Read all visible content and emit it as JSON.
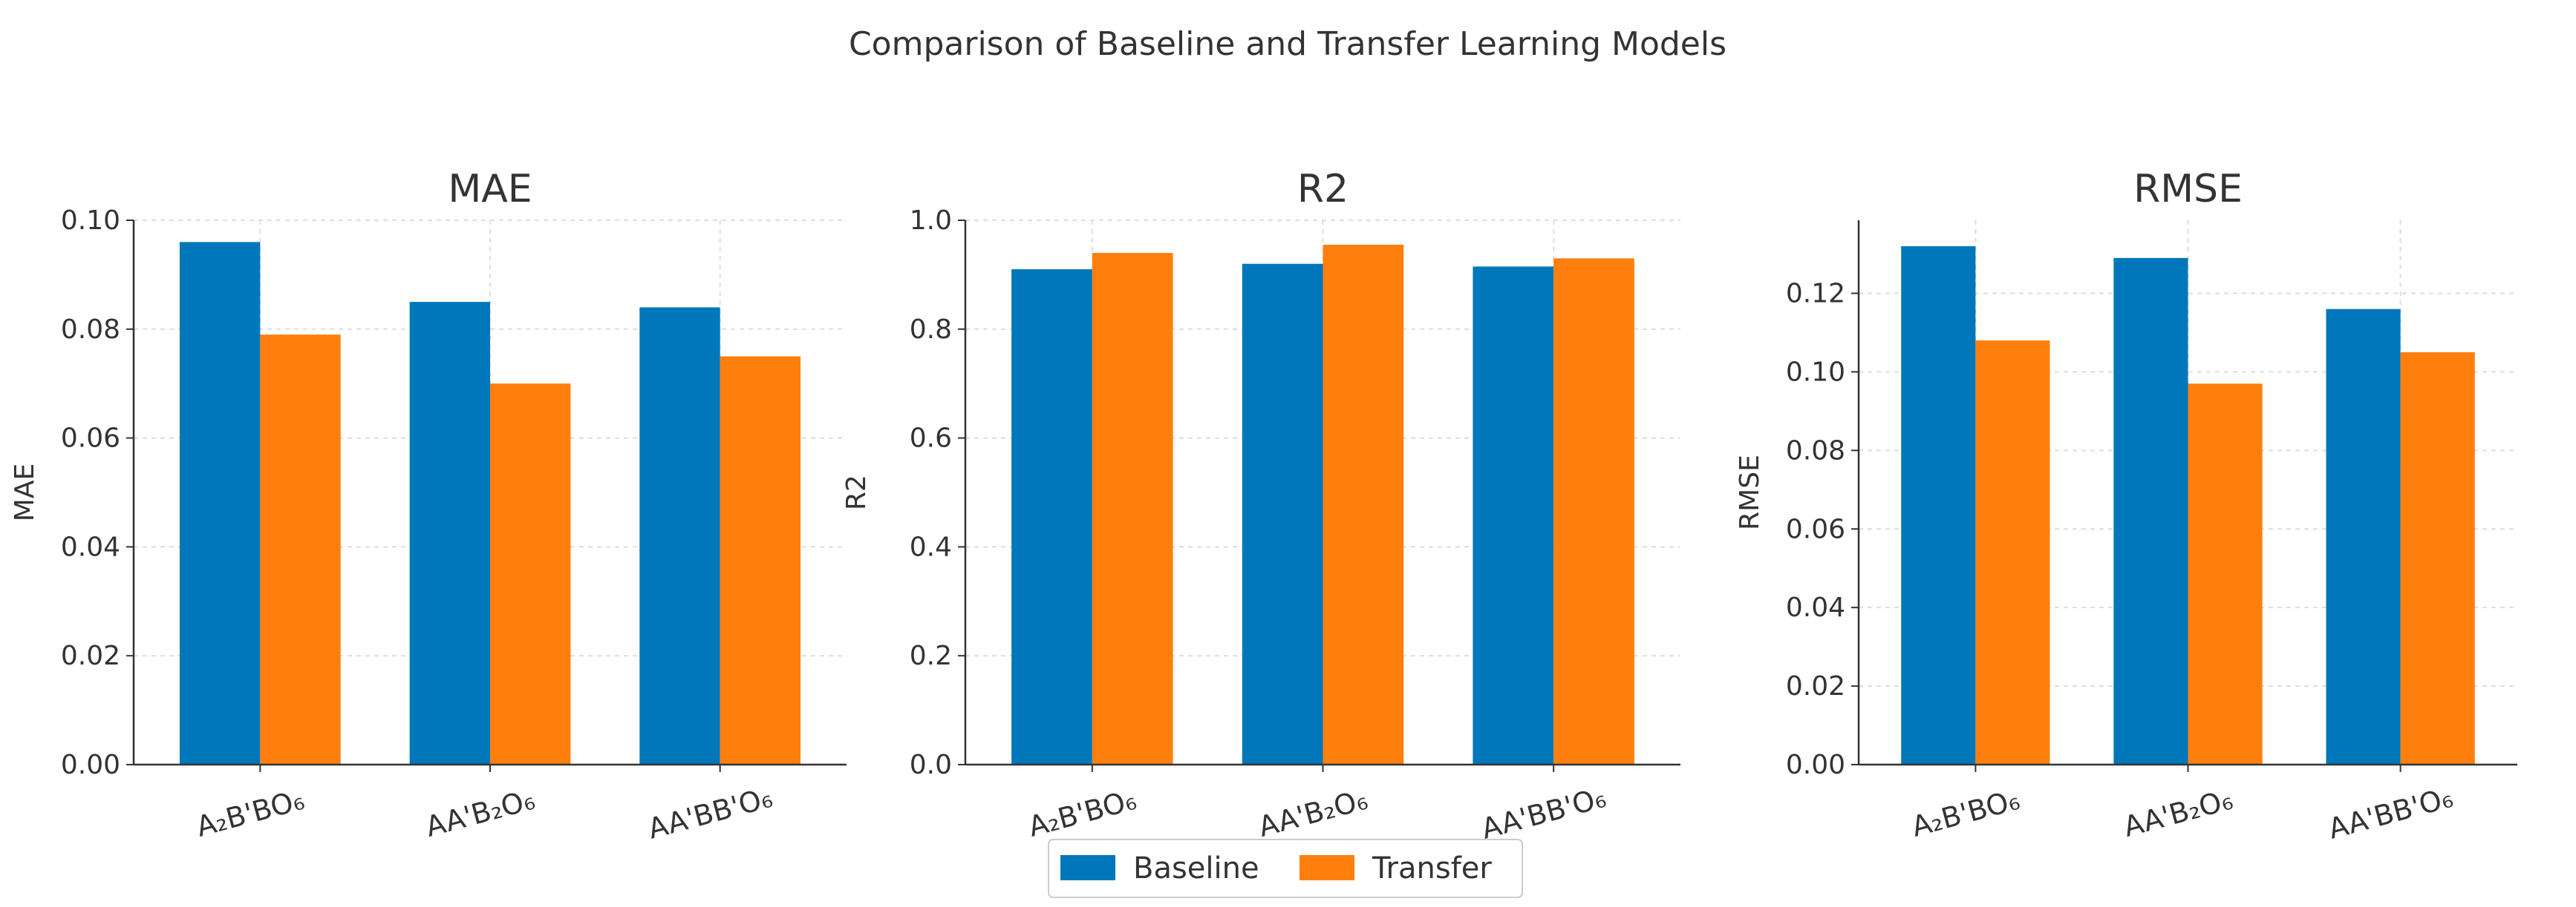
{
  "suptitle": "Comparison of Baseline and Transfer Learning Models",
  "colors": {
    "Baseline": "#0077bb",
    "Transfer": "#ff7f0e",
    "grid": "#dddddd",
    "axis": "#333333"
  },
  "legend": {
    "placement": "bottom-center",
    "entries": [
      "Baseline",
      "Transfer"
    ]
  },
  "chart_data": [
    {
      "type": "bar",
      "title": "MAE",
      "ylabel": "MAE",
      "categories": [
        "A₂B'BO₆",
        "AA'B₂O₆",
        "AA'BB'O₆"
      ],
      "series": [
        {
          "name": "Baseline",
          "values": [
            0.096,
            0.085,
            0.084
          ]
        },
        {
          "name": "Transfer",
          "values": [
            0.079,
            0.07,
            0.075
          ]
        }
      ],
      "ylim": [
        0,
        0.1
      ],
      "yticks": [
        "0.00",
        "0.02",
        "0.04",
        "0.06",
        "0.08",
        "0.10"
      ],
      "grid": true
    },
    {
      "type": "bar",
      "title": "R2",
      "ylabel": "R2",
      "categories": [
        "A₂B'BO₆",
        "AA'B₂O₆",
        "AA'BB'O₆"
      ],
      "series": [
        {
          "name": "Baseline",
          "values": [
            0.91,
            0.92,
            0.915
          ]
        },
        {
          "name": "Transfer",
          "values": [
            0.94,
            0.955,
            0.93
          ]
        }
      ],
      "ylim": [
        0,
        1.0
      ],
      "yticks": [
        "0.0",
        "0.2",
        "0.4",
        "0.6",
        "0.8",
        "1.0"
      ],
      "grid": true
    },
    {
      "type": "bar",
      "title": "RMSE",
      "ylabel": "RMSE",
      "categories": [
        "A₂B'BO₆",
        "AA'B₂O₆",
        "AA'BB'O₆"
      ],
      "series": [
        {
          "name": "Baseline",
          "values": [
            0.132,
            0.129,
            0.116
          ]
        },
        {
          "name": "Transfer",
          "values": [
            0.108,
            0.097,
            0.105
          ]
        }
      ],
      "ylim": [
        0,
        0.1386
      ],
      "yticks": [
        "0.00",
        "0.02",
        "0.04",
        "0.06",
        "0.08",
        "0.10",
        "0.12"
      ],
      "grid": true
    }
  ]
}
